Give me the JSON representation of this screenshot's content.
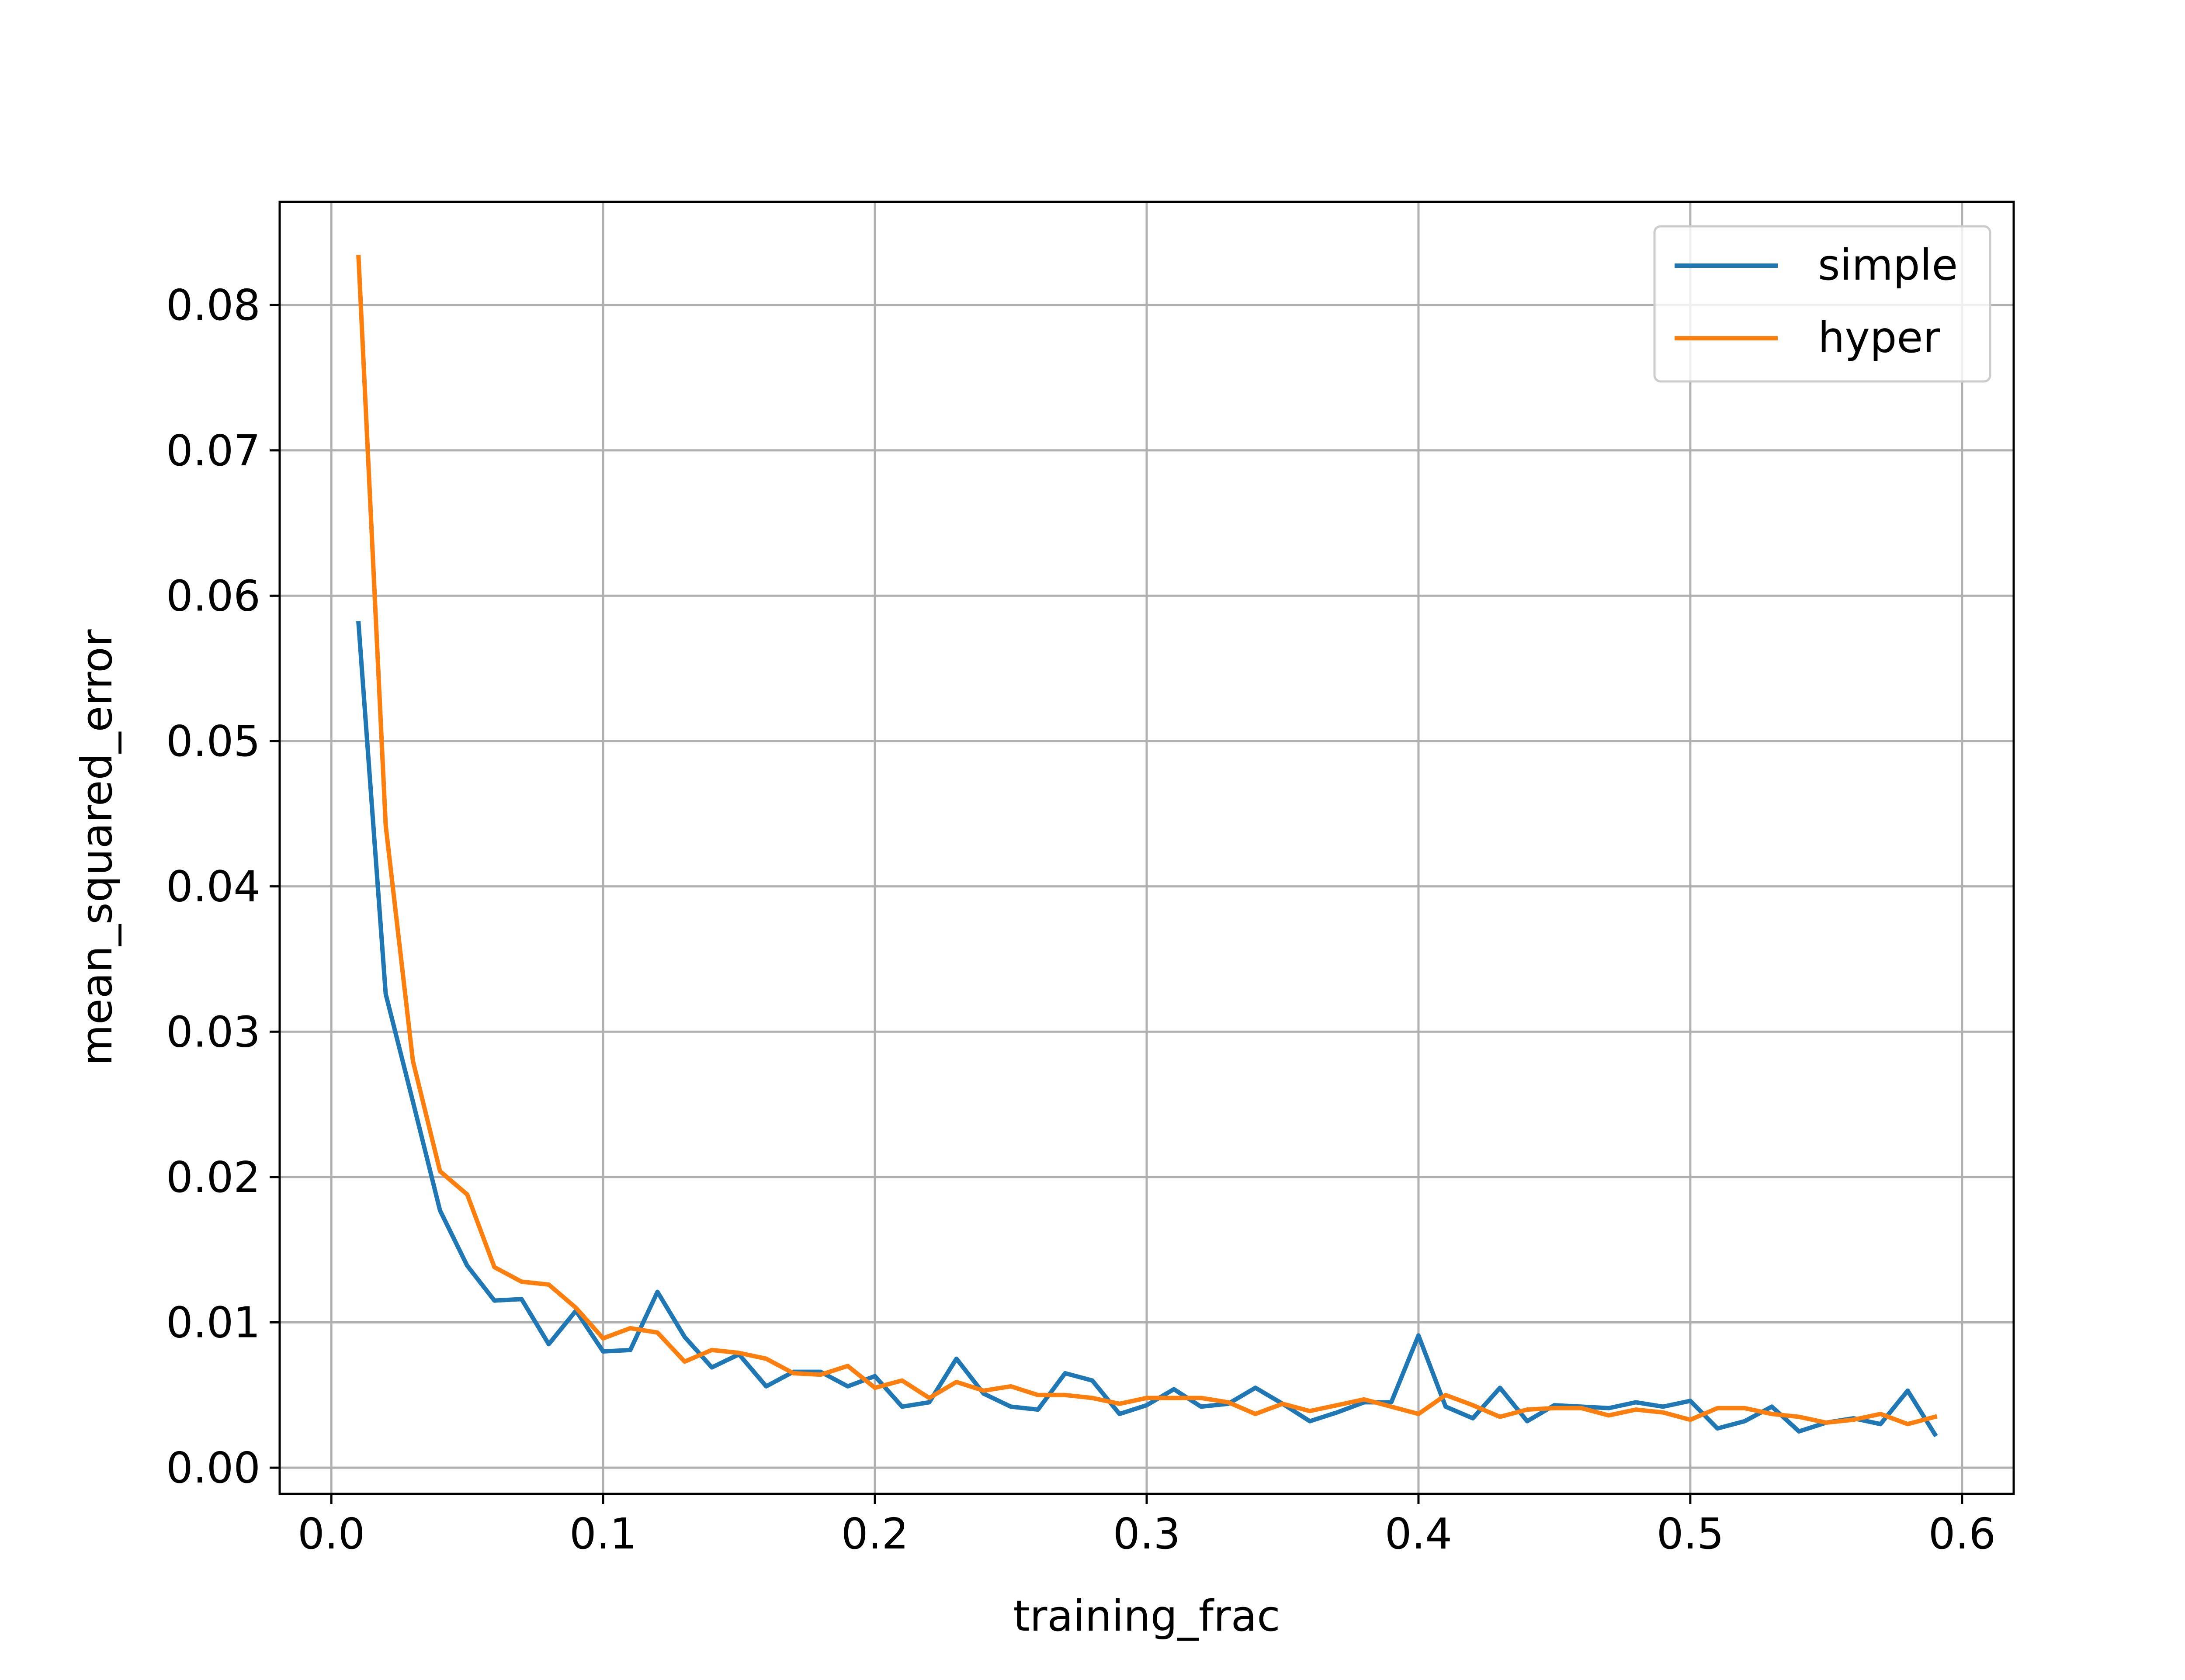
{
  "chart_data": {
    "type": "line",
    "title": "",
    "xlabel": "training_frac",
    "ylabel": "mean_squared_error",
    "xlim": [
      -0.019,
      0.619
    ],
    "ylim": [
      -0.0018,
      0.0871
    ],
    "xticks": [
      0.0,
      0.1,
      0.2,
      0.3,
      0.4,
      0.5,
      0.6
    ],
    "xtick_labels": [
      "0.0",
      "0.1",
      "0.2",
      "0.3",
      "0.4",
      "0.5",
      "0.6"
    ],
    "yticks": [
      0.0,
      0.01,
      0.02,
      0.03,
      0.04,
      0.05,
      0.06,
      0.07,
      0.08
    ],
    "ytick_labels": [
      "0.00",
      "0.01",
      "0.02",
      "0.03",
      "0.04",
      "0.05",
      "0.06",
      "0.07",
      "0.08"
    ],
    "grid": true,
    "legend_position": "top-right",
    "x": [
      0.01,
      0.02,
      0.03,
      0.04,
      0.05,
      0.06,
      0.07,
      0.08,
      0.09,
      0.1,
      0.11,
      0.12,
      0.13,
      0.14,
      0.15,
      0.16,
      0.17,
      0.18,
      0.19,
      0.2,
      0.21,
      0.22,
      0.23,
      0.24,
      0.25,
      0.26,
      0.27,
      0.28,
      0.29,
      0.3,
      0.31,
      0.32,
      0.33,
      0.34,
      0.35,
      0.36,
      0.37,
      0.38,
      0.39,
      0.4,
      0.41,
      0.42,
      0.43,
      0.44,
      0.45,
      0.46,
      0.47,
      0.48,
      0.49,
      0.5,
      0.51,
      0.52,
      0.53,
      0.54,
      0.55,
      0.56,
      0.57,
      0.58,
      0.59
    ],
    "series": [
      {
        "name": "simple",
        "color": "#1f77b4",
        "values": [
          0.0581,
          0.0326,
          0.0252,
          0.0177,
          0.0139,
          0.0115,
          0.0116,
          0.0085,
          0.0108,
          0.008,
          0.0081,
          0.0121,
          0.009,
          0.0069,
          0.0078,
          0.0056,
          0.0066,
          0.0066,
          0.0056,
          0.0063,
          0.0042,
          0.0045,
          0.0075,
          0.0051,
          0.0042,
          0.004,
          0.0065,
          0.006,
          0.0037,
          0.0043,
          0.0054,
          0.0042,
          0.0044,
          0.0055,
          0.0044,
          0.0032,
          0.0038,
          0.0045,
          0.0045,
          0.0091,
          0.0042,
          0.0034,
          0.0055,
          0.0032,
          0.0043,
          0.0042,
          0.0041,
          0.0045,
          0.0042,
          0.0046,
          0.0027,
          0.0032,
          0.0042,
          0.0025,
          0.0031,
          0.0034,
          0.003,
          0.0053,
          0.0023
        ]
      },
      {
        "name": "hyper",
        "color": "#ff7f0e",
        "values": [
          0.0833,
          0.0442,
          0.028,
          0.0204,
          0.0188,
          0.0138,
          0.0128,
          0.0126,
          0.011,
          0.0089,
          0.0096,
          0.0093,
          0.0073,
          0.0081,
          0.0079,
          0.0075,
          0.0065,
          0.0064,
          0.007,
          0.0055,
          0.006,
          0.0048,
          0.0059,
          0.0053,
          0.0056,
          0.005,
          0.005,
          0.0048,
          0.0044,
          0.0048,
          0.0048,
          0.0048,
          0.0045,
          0.0037,
          0.0044,
          0.0039,
          0.0043,
          0.0047,
          0.0042,
          0.0037,
          0.005,
          0.0043,
          0.0035,
          0.004,
          0.0041,
          0.0041,
          0.0036,
          0.004,
          0.0038,
          0.0033,
          0.0041,
          0.0041,
          0.0037,
          0.0035,
          0.0031,
          0.0033,
          0.0037,
          0.003,
          0.0035
        ]
      }
    ]
  }
}
